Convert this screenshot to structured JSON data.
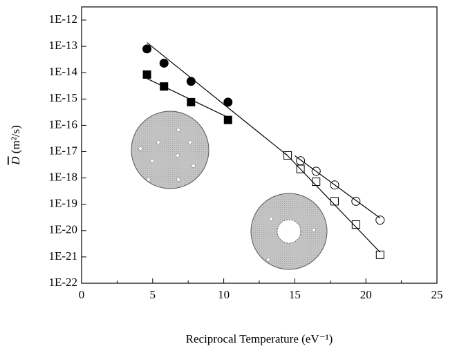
{
  "chart_data": {
    "type": "scatter",
    "xlabel": "Reciprocal Temperature (eV⁻¹)",
    "ylabel": {
      "symbol": "D",
      "unit": "(m²/s)"
    },
    "log_y": true,
    "xlim": [
      0,
      25
    ],
    "xticks": [
      0,
      5,
      10,
      15,
      20,
      25
    ],
    "xminorticks": [
      2.5,
      7.5,
      12.5,
      17.5,
      22.5
    ],
    "ylim": [
      1e-22,
      3.16e-12
    ],
    "yticks": [
      {
        "value": 1e-22,
        "label": "1E-22"
      },
      {
        "value": 1e-21,
        "label": "1E-21"
      },
      {
        "value": 1e-20,
        "label": "1E-20"
      },
      {
        "value": 1e-19,
        "label": "1E-19"
      },
      {
        "value": 1e-18,
        "label": "1E-18"
      },
      {
        "value": 1e-17,
        "label": "1E-17"
      },
      {
        "value": 1e-16,
        "label": "1E-16"
      },
      {
        "value": 1e-15,
        "label": "1E-15"
      },
      {
        "value": 1e-14,
        "label": "1E-14"
      },
      {
        "value": 1e-13,
        "label": "1E-13"
      },
      {
        "value": 1e-12,
        "label": "1E-12"
      }
    ],
    "series": [
      {
        "marker": "circle",
        "filled": true,
        "color": "#000000",
        "x": [
          4.6,
          5.8,
          7.7,
          10.3
        ],
        "values": [
          8e-14,
          2.3e-14,
          4.7e-15,
          7.6e-16
        ]
      },
      {
        "marker": "square",
        "filled": true,
        "color": "#000000",
        "x": [
          4.6,
          5.8,
          7.7,
          10.3
        ],
        "values": [
          8.5e-15,
          3e-15,
          7.6e-16,
          1.6e-16
        ]
      },
      {
        "marker": "square",
        "filled": false,
        "color": "#000000",
        "x": [
          14.5,
          15.4,
          16.5,
          17.8,
          19.3,
          21
        ],
        "values": [
          7.2e-18,
          2.2e-18,
          7.2e-19,
          1.3e-19,
          1.7e-20,
          1.2e-21
        ]
      },
      {
        "marker": "circle",
        "filled": false,
        "color": "#000000",
        "x": [
          15.4,
          16.5,
          17.8,
          19.3,
          21
        ],
        "values": [
          4.5e-18,
          1.8e-18,
          5.4e-19,
          1.3e-19,
          2.5e-20
        ]
      },
      {
        "marker": "line",
        "color": "#000000",
        "x": [
          4.6,
          14.5
        ],
        "values": [
          1.4e-13,
          7e-18
        ]
      },
      {
        "marker": "line",
        "color": "#000000",
        "x": [
          4.6,
          10.3
        ],
        "values": [
          6e-15,
          2e-16
        ]
      },
      {
        "marker": "line",
        "color": "#000000",
        "x": [
          14.3,
          21
        ],
        "values": [
          9e-18,
          1.5e-21
        ]
      },
      {
        "marker": "line",
        "color": "#000000",
        "x": [
          15,
          21
        ],
        "values": [
          7e-18,
          3e-20
        ]
      }
    ]
  }
}
